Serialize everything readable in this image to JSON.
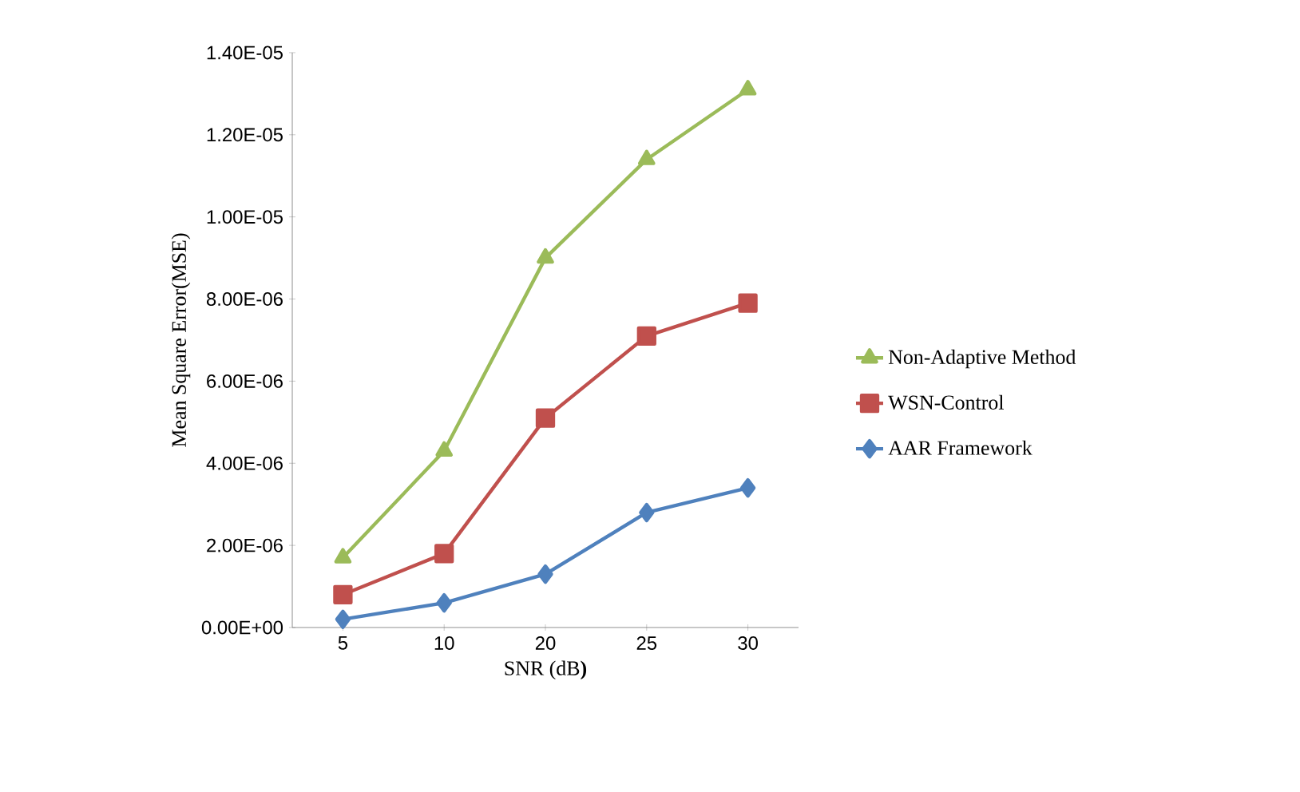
{
  "chart_data": {
    "type": "line",
    "xlabel": "SNR (dB**)**",
    "ylabel": "Mean Square Error(MSE)",
    "categories": [
      "5",
      "10",
      "20",
      "25",
      "30"
    ],
    "series": [
      {
        "name": "Non-Adaptive Method",
        "color": "#9bbb59",
        "marker": "triangle",
        "values": [
          1.7e-06,
          4.3e-06,
          9e-06,
          1.14e-05,
          1.31e-05
        ]
      },
      {
        "name": "WSN-Control",
        "color": "#c0504d",
        "marker": "square",
        "values": [
          8e-07,
          1.8e-06,
          5.1e-06,
          7.1e-06,
          7.9e-06
        ]
      },
      {
        "name": "AAR Framework",
        "color": "#4f81bd",
        "marker": "diamond",
        "values": [
          2e-07,
          6e-07,
          1.3e-06,
          2.8e-06,
          3.4e-06
        ]
      }
    ],
    "ylim": [
      0,
      1.4e-05
    ],
    "yticks": [
      {
        "value": 0,
        "label": "0.00E+00"
      },
      {
        "value": 2e-06,
        "label": "2.00E-06"
      },
      {
        "value": 4e-06,
        "label": "4.00E-06"
      },
      {
        "value": 6e-06,
        "label": "6.00E-06"
      },
      {
        "value": 8e-06,
        "label": "8.00E-06"
      },
      {
        "value": 1e-05,
        "label": "1.00E-05"
      },
      {
        "value": 1.2e-05,
        "label": "1.20E-05"
      },
      {
        "value": 1.4e-05,
        "label": "1.40E-05"
      }
    ],
    "grid": false,
    "legend": "right",
    "line_style": "solid"
  }
}
